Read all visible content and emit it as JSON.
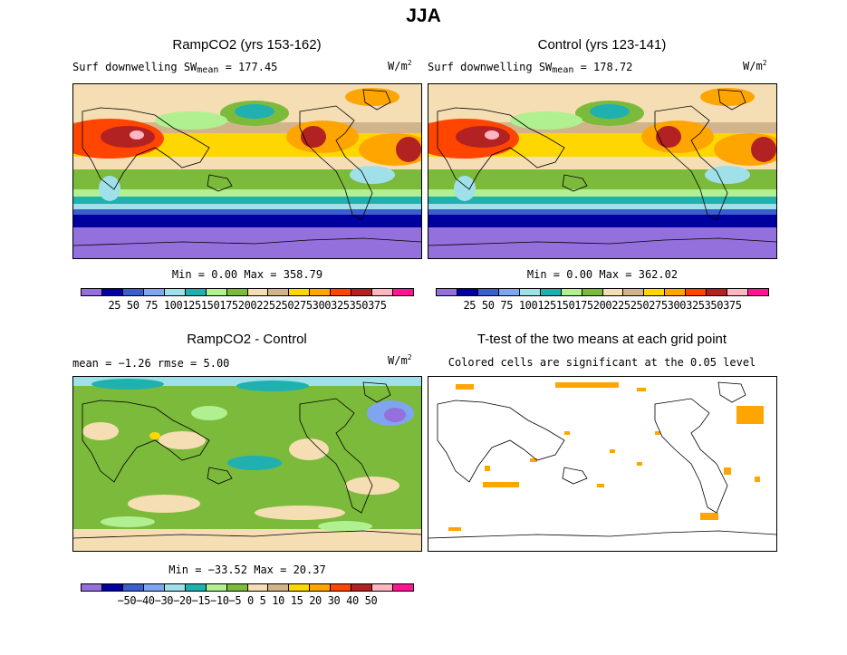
{
  "figure_title": "JJA",
  "panels": {
    "tl": {
      "title": "RampCO2 (yrs 153-162)",
      "var_prefix": "Surf downwelling SW",
      "var_sub": "mean",
      "var_value": "= 177.45",
      "units_base": "W/m",
      "units_exp": "2",
      "minmax": "Min =    0.00 Max = 358.79"
    },
    "tr": {
      "title": "Control (yrs 123-141)",
      "var_prefix": "Surf downwelling SW",
      "var_sub": "mean",
      "var_value": "= 178.72",
      "units_base": "W/m",
      "units_exp": "2",
      "minmax": "Min =    0.00 Max = 362.02"
    },
    "bl": {
      "title": "RampCO2 - Control",
      "stats": "mean =   −1.26    rmse =    5.00",
      "units_base": "W/m",
      "units_exp": "2",
      "minmax": "Min = −33.52 Max =  20.37"
    },
    "br": {
      "title": "T-test of the two means at each grid point",
      "subtitle": "Colored cells are significant at the 0.05 level"
    }
  },
  "colorbars": {
    "main": {
      "colors": [
        "#9370db",
        "#0000a0",
        "#3a5fcd",
        "#7fa5f0",
        "#a0e0e8",
        "#20b0b0",
        "#b0f090",
        "#7cba3c",
        "#f5deb3",
        "#d2b48c",
        "#ffd700",
        "#ffa500",
        "#ff4500",
        "#b22222",
        "#ffb6c1",
        "#ff1493"
      ],
      "labels": "25 50 75 100125150175200225250275300325350375"
    },
    "diff": {
      "colors": [
        "#9370db",
        "#0000a0",
        "#3a5fcd",
        "#7fa5f0",
        "#a0e0e8",
        "#20b0b0",
        "#b0f090",
        "#7cba3c",
        "#f5deb3",
        "#d2b48c",
        "#ffd700",
        "#ffa500",
        "#ff4500",
        "#b22222",
        "#ffb6c1",
        "#ff1493"
      ],
      "labels": "−50−40−30−20−15−10−5  0   5  10  15  20  30  40  50"
    }
  }
}
